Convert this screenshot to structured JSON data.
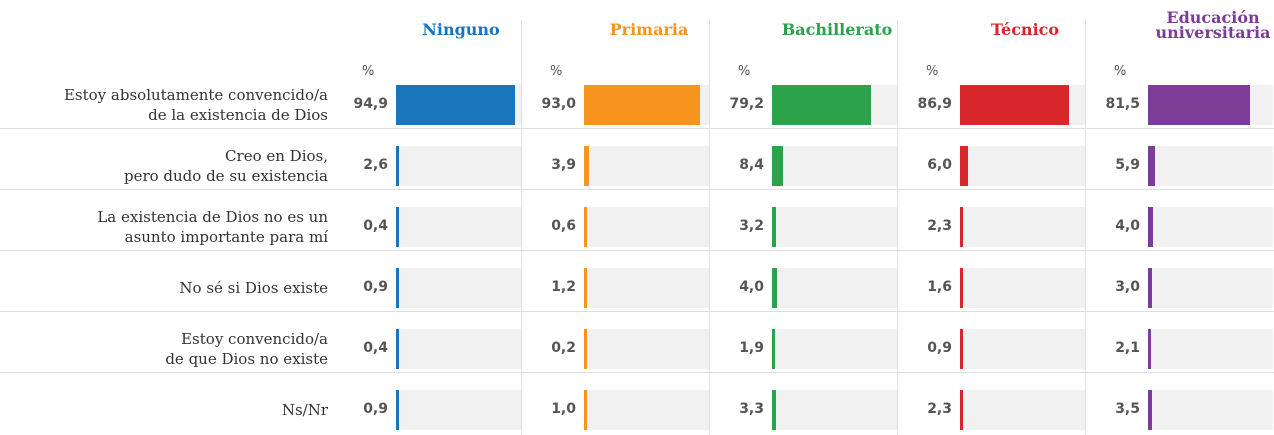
{
  "chart_data": {
    "type": "bar",
    "orientation": "horizontal",
    "unit": "%",
    "categories": [
      "Estoy absolutamente convencido/a\nde la existencia de Dios",
      "Creo en Dios,\npero dudo de su existencia",
      "La existencia de Dios no es un\nasunto importante para mí",
      "No sé si Dios existe",
      "Estoy convencido/a\nde que Dios no existe",
      "Ns/Nr"
    ],
    "xlim": [
      0,
      100
    ],
    "series": [
      {
        "name": "Ninguno",
        "color": "#1a75bb",
        "values": [
          94.9,
          2.6,
          0.4,
          0.9,
          0.4,
          0.9
        ],
        "value_labels": [
          "94,9",
          "2,6",
          "0,4",
          "0,9",
          "0,4",
          "0,9"
        ]
      },
      {
        "name": "Primaria",
        "color": "#f7941d",
        "values": [
          93.0,
          3.9,
          0.6,
          1.2,
          0.2,
          1.0
        ],
        "value_labels": [
          "93,0",
          "3,9",
          "0,6",
          "1,2",
          "0,2",
          "1,0"
        ]
      },
      {
        "name": "Bachillerato",
        "color": "#2ca24a",
        "values": [
          79.2,
          8.4,
          3.2,
          4.0,
          1.9,
          3.3
        ],
        "value_labels": [
          "79,2",
          "8,4",
          "3,2",
          "4,0",
          "1,9",
          "3,3"
        ]
      },
      {
        "name": "Técnico",
        "color": "#d9262b",
        "values": [
          86.9,
          6.0,
          2.3,
          1.6,
          0.9,
          2.3
        ],
        "value_labels": [
          "86,9",
          "6,0",
          "2,3",
          "1,6",
          "0,9",
          "2,3"
        ]
      },
      {
        "name": "Educación\nuniversitaria",
        "color": "#7d3c98",
        "values": [
          81.5,
          5.9,
          4.0,
          3.0,
          2.1,
          3.5
        ],
        "value_labels": [
          "81,5",
          "5,9",
          "4,0",
          "3,0",
          "2,1",
          "3,5"
        ]
      }
    ]
  }
}
